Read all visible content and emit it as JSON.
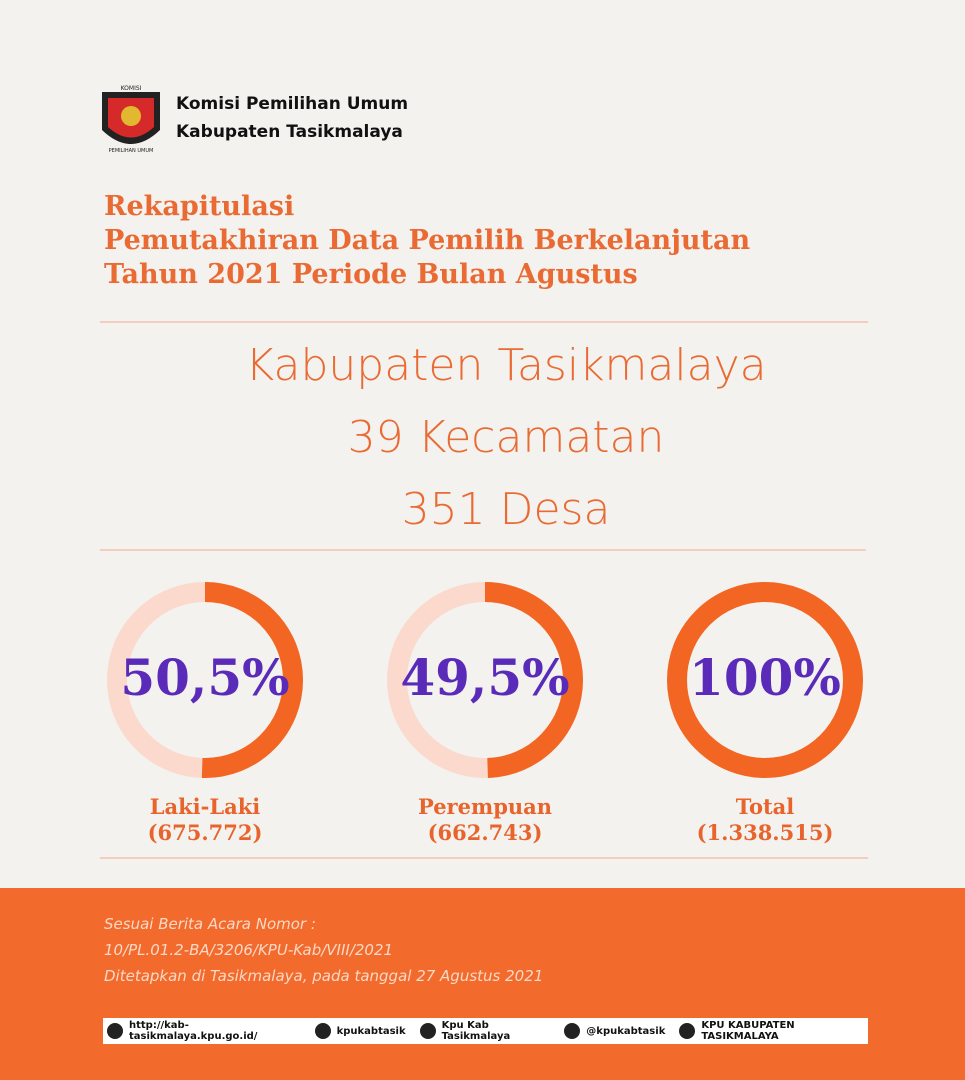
{
  "header": {
    "logo_text": [
      "KOMISI",
      "PEMILIHAN UMUM"
    ],
    "org_line1": "Komisi Pemilihan Umum",
    "org_line2": "Kabupaten Tasikmalaya"
  },
  "title": [
    "Rekapitulasi",
    "Pemutakhiran Data Pemilih Berkelanjutan",
    "Tahun 2021 Periode Bulan Agustus"
  ],
  "region": [
    "Kabupaten Tasikmalaya",
    "39 Kecamatan",
    "351 Desa"
  ],
  "gauges": [
    {
      "value": 50.5,
      "value_label": "50,5%",
      "label": "Laki-Laki",
      "count": "(675.772)"
    },
    {
      "value": 49.5,
      "value_label": "49,5%",
      "label": "Perempuan",
      "count": "(662.743)"
    },
    {
      "value": 100,
      "value_label": "100%",
      "label": "Total",
      "count": "(1.338.515)"
    }
  ],
  "footer": {
    "lines": [
      "Sesuai Berita Acara Nomor :",
      "10/PL.01.2-BA/3206/KPU-Kab/VIII/2021",
      "Ditetapkan di Tasikmalaya, pada tanggal 27 Agustus 2021"
    ],
    "social": [
      "http://kab-tasikmalaya.kpu.go.id/",
      "kpukabtasik",
      "Kpu Kab Tasikmalaya",
      "@kpukabtasik",
      "KPU KABUPATEN TASIKMALAYA"
    ]
  }
}
